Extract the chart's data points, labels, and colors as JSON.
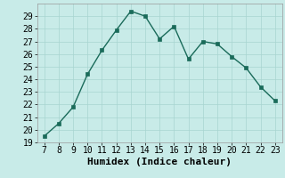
{
  "x": [
    7,
    8,
    9,
    10,
    11,
    12,
    13,
    14,
    15,
    16,
    17,
    18,
    19,
    20,
    21,
    22,
    23
  ],
  "y": [
    19.5,
    20.5,
    21.8,
    24.4,
    26.3,
    27.9,
    29.4,
    29.0,
    27.2,
    28.2,
    25.6,
    27.0,
    26.8,
    25.8,
    24.9,
    23.4,
    22.3
  ],
  "line_color": "#1a6b5a",
  "marker_color": "#1a6b5a",
  "bg_color": "#c8ebe8",
  "grid_color": "#a8d5d0",
  "xlabel": "Humidex (Indice chaleur)",
  "xlim": [
    6.5,
    23.5
  ],
  "ylim": [
    19,
    30
  ],
  "xticks": [
    7,
    8,
    9,
    10,
    11,
    12,
    13,
    14,
    15,
    16,
    17,
    18,
    19,
    20,
    21,
    22,
    23
  ],
  "yticks": [
    19,
    20,
    21,
    22,
    23,
    24,
    25,
    26,
    27,
    28,
    29
  ],
  "tick_fontsize": 7,
  "label_fontsize": 8
}
